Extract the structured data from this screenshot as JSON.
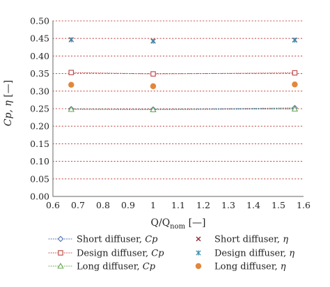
{
  "chart_data": {
    "type": "scatter",
    "xlabel_main": "Q/Q",
    "xlabel_sub": "nom",
    "xlabel_unit": " [—]",
    "ylabel_main": "Cp, η",
    "ylabel_unit": " [—]",
    "xlim": [
      0.6,
      1.6
    ],
    "ylim": [
      0.0,
      0.5
    ],
    "xticks": [
      "0.6",
      "0.7",
      "0.8",
      "0.9",
      "1",
      "1.1",
      "1.2",
      "1.3",
      "1.4",
      "1.5",
      "1.6"
    ],
    "yticks": [
      "0.00",
      "0.05",
      "0.10",
      "0.15",
      "0.20",
      "0.25",
      "0.30",
      "0.35",
      "0.40",
      "0.45",
      "0.50"
    ],
    "grid": "horizontal dotted",
    "legend_position": "bottom",
    "series": [
      {
        "name": "Short diffuser, Cp",
        "label": "Short diffuser, ",
        "symbol": "Cp",
        "marker": "diamond",
        "color": "#4a6fb0",
        "line": "dotted",
        "x": [
          0.673,
          1.0,
          1.565
        ],
        "y": [
          0.249,
          0.248,
          0.252
        ]
      },
      {
        "name": "Short diffuser, η",
        "label": "Short diffuser, ",
        "symbol": "η",
        "marker": "x",
        "color": "#8e2a3a",
        "line": "none",
        "x": [
          0.673,
          1.0,
          1.565
        ],
        "y": [
          0.447,
          0.443,
          0.446
        ]
      },
      {
        "name": "Design diffuser, Cp",
        "label": "Design diffuser, ",
        "symbol": "Cp",
        "marker": "square",
        "color": "#c0504d",
        "line": "dotted",
        "x": [
          0.673,
          1.0,
          1.565
        ],
        "y": [
          0.353,
          0.349,
          0.352
        ]
      },
      {
        "name": "Design diffuser, η",
        "label": "Design diffuser, ",
        "symbol": "η",
        "marker": "star",
        "color": "#3a8fb0",
        "line": "none",
        "x": [
          0.673,
          1.0,
          1.565
        ],
        "y": [
          0.446,
          0.442,
          0.445
        ]
      },
      {
        "name": "Long diffuser, Cp",
        "label": "Long diffuser, ",
        "symbol": "Cp",
        "marker": "triangle",
        "color": "#6aa84f",
        "line": "dotted",
        "x": [
          0.673,
          1.0,
          1.565
        ],
        "y": [
          0.248,
          0.247,
          0.249
        ]
      },
      {
        "name": "Long diffuser, η",
        "label": "Long diffuser, ",
        "symbol": "η",
        "marker": "circle",
        "color": "#e2873a",
        "line": "none",
        "x": [
          0.673,
          1.0,
          1.565
        ],
        "y": [
          0.318,
          0.314,
          0.319
        ]
      }
    ]
  }
}
